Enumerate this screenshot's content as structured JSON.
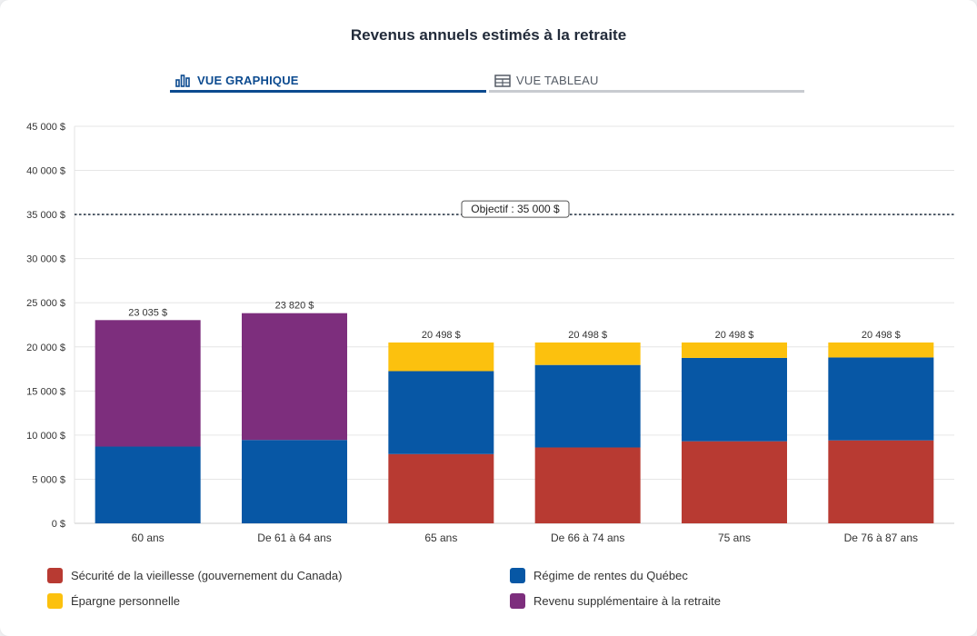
{
  "title": "Revenus annuels estimés à la retraite",
  "tabs": [
    {
      "label": "VUE GRAPHIQUE",
      "icon": "bar-chart-icon",
      "active": true
    },
    {
      "label": "VUE TABLEAU",
      "icon": "table-icon",
      "active": false
    }
  ],
  "colors": {
    "securite": "#b83a32",
    "rrq": "#0757a5",
    "epargne": "#fcc10e",
    "supplementaire": "#7d2e7d",
    "grid": "#e6e6e6",
    "objective": "#2c3a4a"
  },
  "chart_data": {
    "type": "bar",
    "stacked": true,
    "categories": [
      "60 ans",
      "De 61 à 64 ans",
      "65 ans",
      "De 66 à 74 ans",
      "75 ans",
      "De 76 à 87 ans"
    ],
    "series": [
      {
        "name": "Sécurité de la vieillesse (gouvernement du Canada)",
        "key": "securite",
        "values": [
          0,
          0,
          7850,
          8600,
          9300,
          9400
        ]
      },
      {
        "name": "Régime de rentes du Québec",
        "key": "rrq",
        "values": [
          8700,
          9450,
          9400,
          9350,
          9450,
          9400
        ]
      },
      {
        "name": "Épargne personnelle",
        "key": "epargne",
        "values": [
          0,
          0,
          3248,
          2548,
          1748,
          1698
        ]
      },
      {
        "name": "Revenu supplémentaire à la retraite",
        "key": "supplementaire",
        "values": [
          14335,
          14370,
          0,
          0,
          0,
          0
        ]
      }
    ],
    "totals": [
      "23 035 $",
      "23 820 $",
      "20 498 $",
      "20 498 $",
      "20 498 $",
      "20 498 $"
    ],
    "y_ticks": [
      0,
      5000,
      10000,
      15000,
      20000,
      25000,
      30000,
      35000,
      40000,
      45000
    ],
    "y_tick_labels": [
      "0 $",
      "5 000 $",
      "10 000 $",
      "15 000 $",
      "20 000 $",
      "25 000 $",
      "30 000 $",
      "35 000 $",
      "40 000 $",
      "45 000 $"
    ],
    "ylim": [
      0,
      45000
    ],
    "objective": {
      "value": 35000,
      "label": "Objectif : 35 000 $"
    },
    "grid": true,
    "legend_position": "bottom"
  },
  "legend": [
    {
      "label": "Sécurité de la vieillesse (gouvernement du Canada)",
      "key": "securite"
    },
    {
      "label": "Régime de rentes du Québec",
      "key": "rrq"
    },
    {
      "label": "Épargne personnelle",
      "key": "epargne"
    },
    {
      "label": "Revenu supplémentaire à la retraite",
      "key": "supplementaire"
    }
  ]
}
